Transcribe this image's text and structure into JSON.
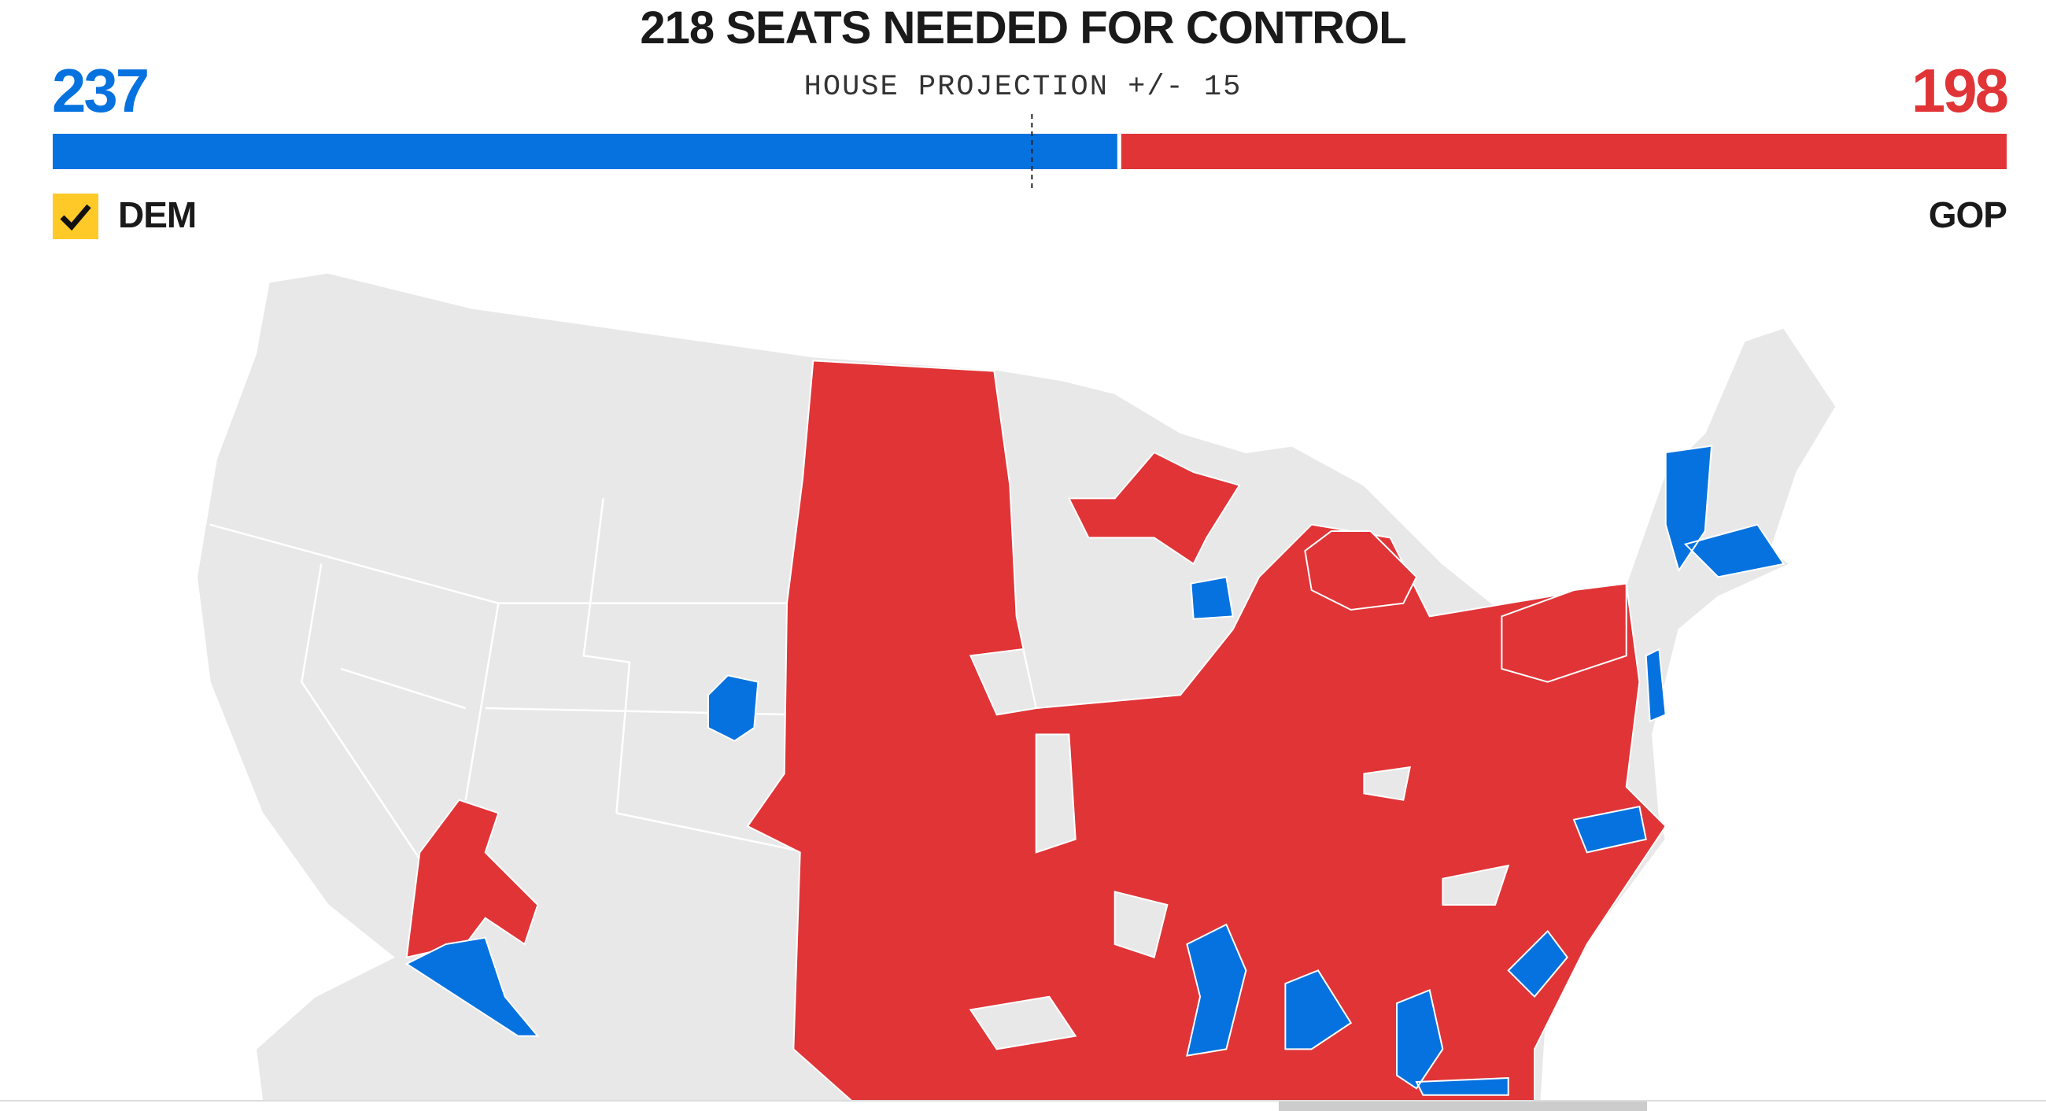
{
  "header": {
    "title": "218 SEATS NEEDED FOR CONTROL",
    "subtitle": "HOUSE PROJECTION +/- 15"
  },
  "control": {
    "needed": 218,
    "dem": {
      "label": "DEM",
      "seats": 237,
      "color": "#0672e0"
    },
    "gop": {
      "label": "GOP",
      "seats": 198,
      "color": "#e03437"
    }
  }
}
